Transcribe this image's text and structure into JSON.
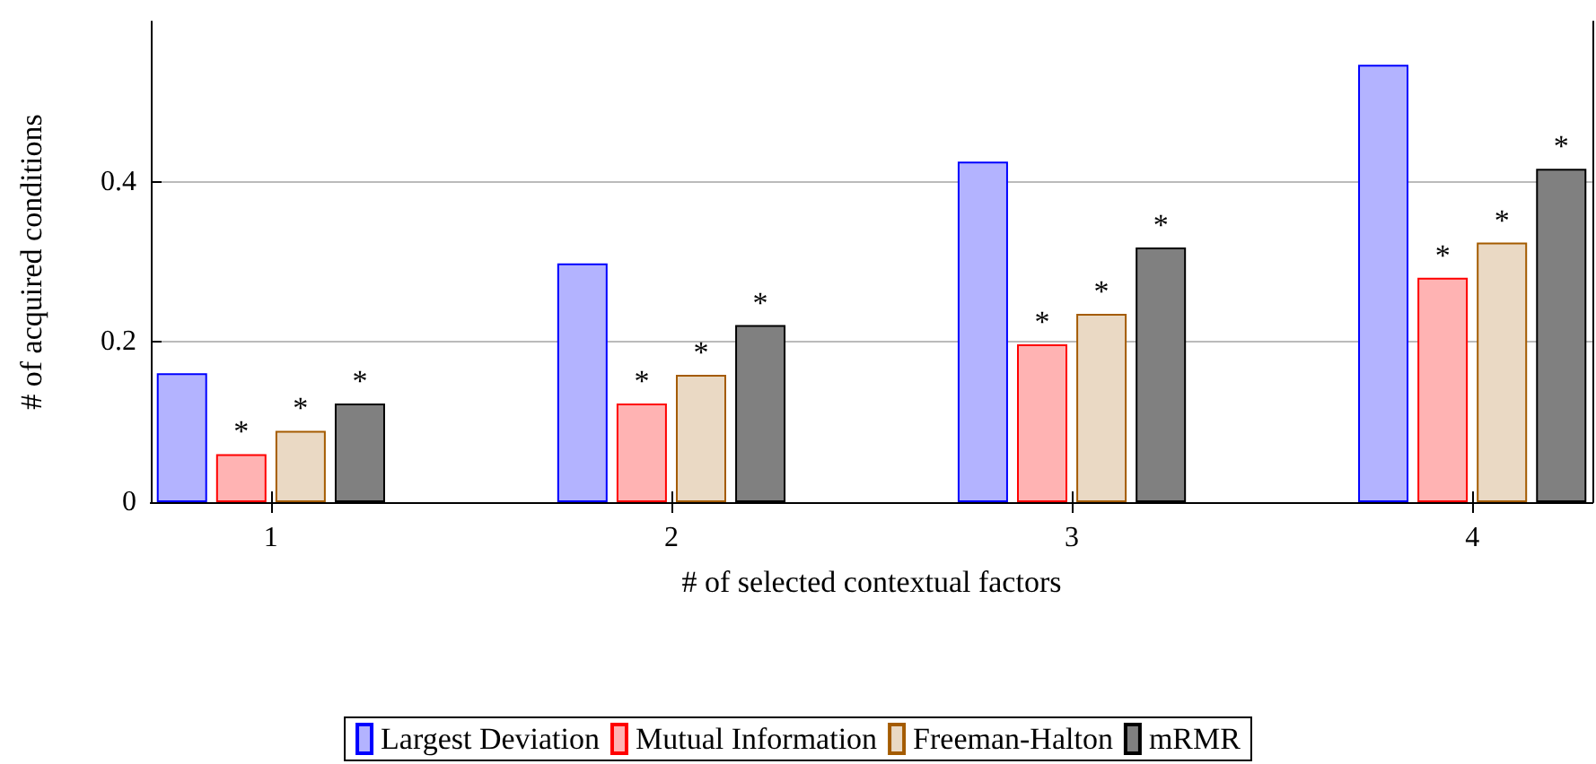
{
  "chart_data": {
    "type": "bar",
    "xlabel": "# of selected contextual factors",
    "ylabel": "# of acquired conditions",
    "x": [
      1,
      2,
      3,
      4
    ],
    "xlim": [
      0.7,
      4.3
    ],
    "xticks": [
      1,
      2,
      3,
      4
    ],
    "ylim": [
      0,
      0.6
    ],
    "yticks": [
      0,
      0.2,
      0.4
    ],
    "grid": "y",
    "legend": "bottom",
    "series": [
      {
        "name": "Largest Deviation",
        "color": "#b3b3ff",
        "values": [
          0.161,
          0.298,
          0.425,
          0.546
        ]
      },
      {
        "name": "Mutual Information",
        "color": "#ffb3b3",
        "values": [
          0.06,
          0.123,
          0.197,
          0.28
        ]
      },
      {
        "name": "Freeman-Halton",
        "color": "#ead9c4",
        "values": [
          0.089,
          0.159,
          0.235,
          0.324
        ]
      },
      {
        "name": "mRMR",
        "color": "#808080",
        "values": [
          0.123,
          0.221,
          0.318,
          0.416
        ]
      }
    ],
    "annotations": [
      "*",
      "*",
      "*",
      "*",
      "*",
      "*",
      "*",
      "*",
      "*",
      "*",
      "*",
      "*"
    ]
  }
}
